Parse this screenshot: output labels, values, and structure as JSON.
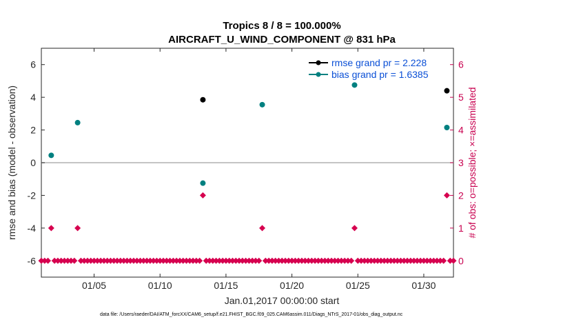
{
  "chart_data": {
    "type": "scatter",
    "title_line1": "Tropics 8 / 8 = 100.000%",
    "title_line2": "AIRCRAFT_U_WIND_COMPONENT @ 831 hPa",
    "xlabel": "Jan.01,2017 00:00:00 start",
    "ylabel_left": "rmse and bias (model - observation)",
    "ylabel_right": "# of obs: o=possible; ×=assimilated",
    "footnote": "data file: /Users/raeder/DAI/ATM_forcXX/CAM6_setup/f.e21.FHIST_BGC.f09_025.CAM6assim.011/Diags_NTrS_2017-01/obs_diag_output.nc",
    "xlim": [
      1,
      32.25
    ],
    "ylim_left": [
      -7,
      7
    ],
    "ylim_right": [
      -0.5,
      6.5
    ],
    "x_ticks": [
      {
        "value": 5,
        "label": "01/05"
      },
      {
        "value": 10,
        "label": "01/10"
      },
      {
        "value": 15,
        "label": "01/15"
      },
      {
        "value": 20,
        "label": "01/20"
      },
      {
        "value": 25,
        "label": "01/25"
      },
      {
        "value": 30,
        "label": "01/30"
      }
    ],
    "y_ticks_left": [
      {
        "value": 6,
        "label": "6"
      },
      {
        "value": 4,
        "label": "4"
      },
      {
        "value": 2,
        "label": "2"
      },
      {
        "value": 0,
        "label": "0"
      },
      {
        "value": -2,
        "label": "-2"
      },
      {
        "value": -4,
        "label": "-4"
      },
      {
        "value": -6,
        "label": "-6"
      }
    ],
    "y_ticks_right": [
      {
        "value": 0,
        "label": "0"
      },
      {
        "value": 1,
        "label": "1"
      },
      {
        "value": 2,
        "label": "2"
      },
      {
        "value": 3,
        "label": "3"
      },
      {
        "value": 4,
        "label": "4"
      },
      {
        "value": 5,
        "label": "5"
      },
      {
        "value": 6,
        "label": "6"
      }
    ],
    "zero_line": 0,
    "series": [
      {
        "name": "rmse",
        "legend": "rmse grand pr = 2.228",
        "color": "#000000",
        "axis": "left",
        "points": [
          {
            "x": 13.25,
            "y": 3.85
          },
          {
            "x": 31.75,
            "y": 4.4
          }
        ]
      },
      {
        "name": "bias",
        "legend": "bias grand pr = 1.6385",
        "color": "#008080",
        "axis": "left",
        "points": [
          {
            "x": 1.75,
            "y": 0.45
          },
          {
            "x": 3.75,
            "y": 2.45
          },
          {
            "x": 13.25,
            "y": -1.25
          },
          {
            "x": 17.75,
            "y": 3.55
          },
          {
            "x": 24.75,
            "y": 4.75
          },
          {
            "x": 31.75,
            "y": 2.15
          }
        ]
      },
      {
        "name": "obs_count",
        "legend": "",
        "color": "#d6004f",
        "axis": "right",
        "x_start": 1,
        "x_step": 0.25,
        "nonzero": [
          {
            "x": 1.75,
            "y": 1
          },
          {
            "x": 3.75,
            "y": 1
          },
          {
            "x": 13.25,
            "y": 2
          },
          {
            "x": 17.75,
            "y": 1
          },
          {
            "x": 24.75,
            "y": 1
          },
          {
            "x": 31.75,
            "y": 2
          }
        ],
        "x_end": 32.25
      }
    ]
  }
}
